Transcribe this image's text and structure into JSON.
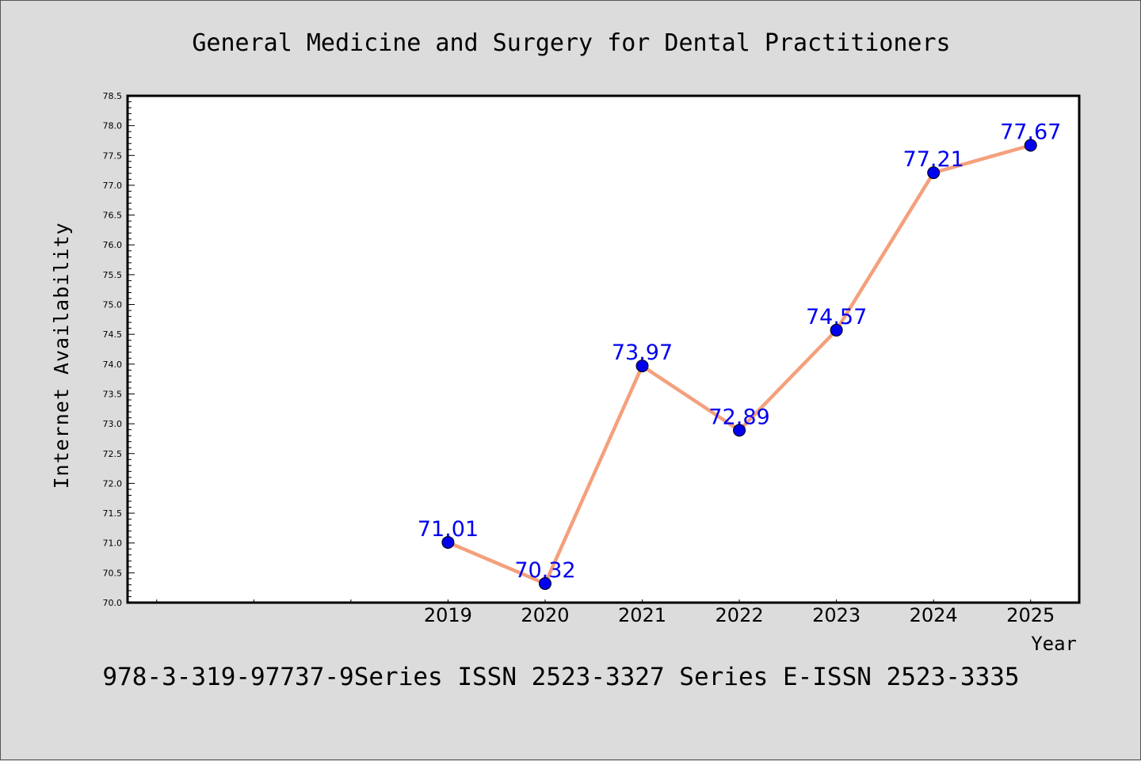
{
  "footer": "978-3-319-97737-9Series ISSN 2523-3327 Series E-ISSN 2523-3335",
  "chart_data": {
    "type": "line",
    "title": "General Medicine and Surgery for Dental Practitioners",
    "xlabel": "Year",
    "ylabel": "Internet Availability",
    "x": [
      2019,
      2020,
      2021,
      2022,
      2023,
      2024,
      2025
    ],
    "x_tick_labels": [
      "2019",
      "2020",
      "2021",
      "2022",
      "2023",
      "2024",
      "2025"
    ],
    "xlim": [
      2015.7,
      2025.5
    ],
    "ylim": [
      70.0,
      78.5
    ],
    "y_tick_labels": [
      "70.0",
      "70.5",
      "71.0",
      "71.5",
      "72.0",
      "72.5",
      "73.0",
      "73.5",
      "74.0",
      "74.5",
      "75.0",
      "75.5",
      "76.0",
      "76.5",
      "77.0",
      "77.5",
      "78.0",
      "78.5"
    ],
    "series": [
      {
        "values": [
          71.01,
          70.32,
          73.97,
          72.89,
          74.57,
          77.21,
          77.67
        ],
        "data_labels": [
          "71.01",
          "70.32",
          "73.97",
          "72.89",
          "74.57",
          "77.21",
          "77.67"
        ],
        "line_color": "#f4a07c",
        "marker_color": "#0000ee"
      }
    ],
    "grid": false,
    "legend": "none"
  }
}
